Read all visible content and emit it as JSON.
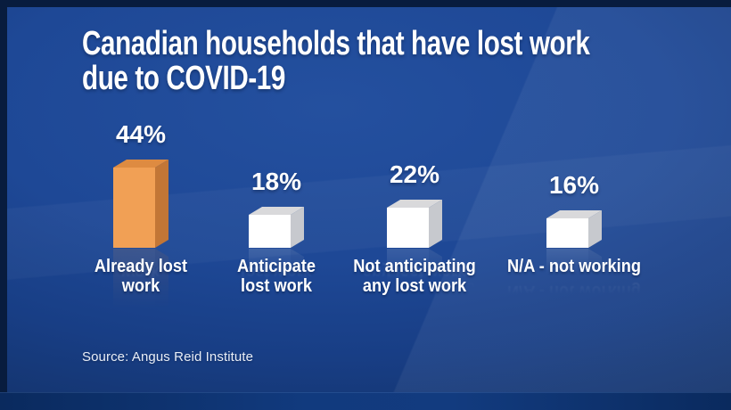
{
  "title": "Canadian households that have lost work\ndue to COVID-19",
  "source": "Source: Angus Reid Institute",
  "colors": {
    "background_center": "#24509f",
    "background_edge": "#0f2a5a",
    "border_dark": "#081c3e",
    "bottom_strip": "#113a7e",
    "text": "#ffffff",
    "highlight_bar_front": "#f1a055",
    "highlight_bar_top": "#de8b41",
    "highlight_bar_side": "#c27636",
    "default_bar_front": "#ffffff",
    "default_bar_top": "#d9d9db",
    "default_bar_side": "#c7c9ce"
  },
  "chart_data": {
    "type": "bar",
    "title": "Canadian households that have lost work due to COVID-19",
    "source": "Source: Angus Reid Institute",
    "unit": "percent",
    "categories": [
      "Already lost work",
      "Anticipate lost work",
      "Not anticipating any lost work",
      "N/A - not working"
    ],
    "category_display": [
      "Already lost\nwork",
      "Anticipate\nlost work",
      "Not anticipating\nany lost work",
      "N/A - not working"
    ],
    "values": [
      44,
      18,
      22,
      16
    ],
    "value_labels": [
      "44%",
      "18%",
      "22%",
      "16%"
    ],
    "style": "3d-cube-bars",
    "grid": false,
    "legend": false,
    "ylim": [
      0,
      50
    ],
    "bar_colors_3d": [
      {
        "front": "#f1a055",
        "top": "#de8b41",
        "side": "#c27636"
      },
      {
        "front": "#ffffff",
        "top": "#d9d9db",
        "side": "#c7c9ce"
      },
      {
        "front": "#ffffff",
        "top": "#d9d9db",
        "side": "#c7c9ce"
      },
      {
        "front": "#ffffff",
        "top": "#d9d9db",
        "side": "#c7c9ce"
      }
    ]
  }
}
